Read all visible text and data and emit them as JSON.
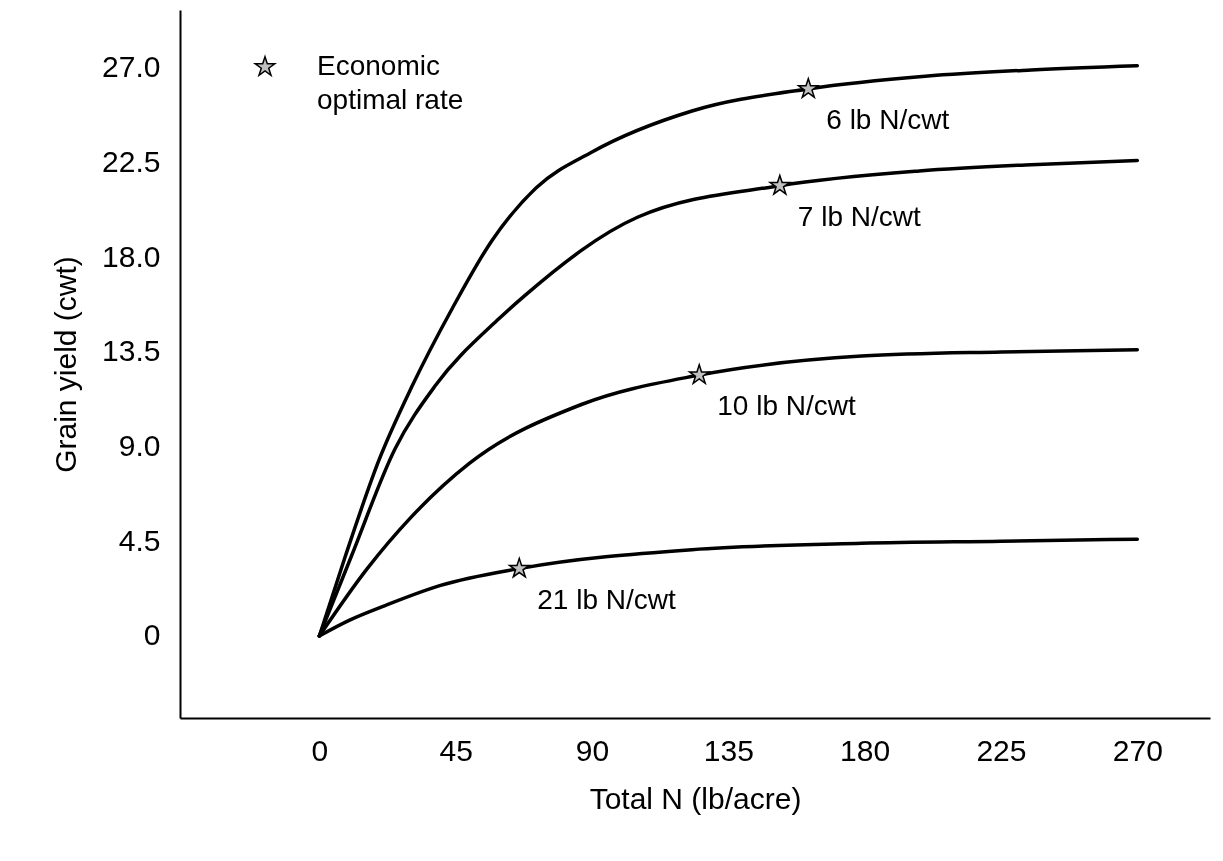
{
  "chart_data": {
    "type": "line",
    "xlabel": "Total N (lb/acre)",
    "ylabel": "Grain yield (cwt)",
    "xlim": [
      -46,
      294
    ],
    "ylim": [
      -3.9,
      29.75
    ],
    "xticks": [
      0,
      45,
      90,
      135,
      180,
      225,
      270
    ],
    "yticks": [
      {
        "value": 0,
        "label": "0"
      },
      {
        "value": 4.5,
        "label": "4.5"
      },
      {
        "value": 9,
        "label": "9.0"
      },
      {
        "value": 13.5,
        "label": "13.5"
      },
      {
        "value": 18,
        "label": "18.0"
      },
      {
        "value": 22.5,
        "label": "22.5"
      },
      {
        "value": 27,
        "label": "27.0"
      }
    ],
    "grid": false,
    "legend": "top left",
    "line_style": "solid",
    "series": [
      {
        "color": "#000000",
        "x": [
          0,
          8.6,
          19.8,
          30.7,
          44,
          57,
          71.6,
          90,
          123,
          161.4,
          200,
          235,
          270
        ],
        "values": [
          0,
          3.8,
          8.4,
          11.9,
          15.6,
          18.8,
          21.3,
          23.0,
          24.95,
          26.0,
          26.6,
          26.9,
          27.1
        ]
      },
      {
        "color": "#000000",
        "x": [
          0,
          10.6,
          25,
          38.3,
          58.7,
          68,
          105,
          152,
          198,
          235,
          270
        ],
        "values": [
          0,
          3.8,
          8.9,
          11.9,
          15.0,
          16.2,
          19.9,
          21.4,
          22.1,
          22.4,
          22.6
        ]
      },
      {
        "color": "#000000",
        "x": [
          0,
          15.8,
          30,
          49.5,
          86.5,
          125.4,
          179,
          225,
          270
        ],
        "values": [
          0,
          3.2,
          5.6,
          8.2,
          11.0,
          12.4,
          13.3,
          13.5,
          13.6
        ]
      },
      {
        "color": "#000000",
        "x": [
          0,
          10,
          21.5,
          40,
          66,
          123,
          179,
          225,
          270
        ],
        "values": [
          0,
          0.75,
          1.43,
          2.4,
          3.2,
          4.1,
          4.4,
          4.5,
          4.6
        ]
      },
      {
        "type": "scatter",
        "name": "Economic optimal rate",
        "marker": "star",
        "color": "#c0c0c0",
        "x": [
          161.4,
          152,
          125.4,
          66
        ],
        "values": [
          26.0,
          21.4,
          12.4,
          3.2
        ]
      }
    ],
    "annotations": [
      {
        "text": "6 lb N/cwt",
        "x": 161.4,
        "y": 26.0
      },
      {
        "text": "7 lb N/cwt",
        "x": 152,
        "y": 21.4
      },
      {
        "text": "10 lb N/cwt",
        "x": 125.4,
        "y": 12.4
      },
      {
        "text": "21 lb N/cwt",
        "x": 66,
        "y": 3.2
      }
    ]
  }
}
